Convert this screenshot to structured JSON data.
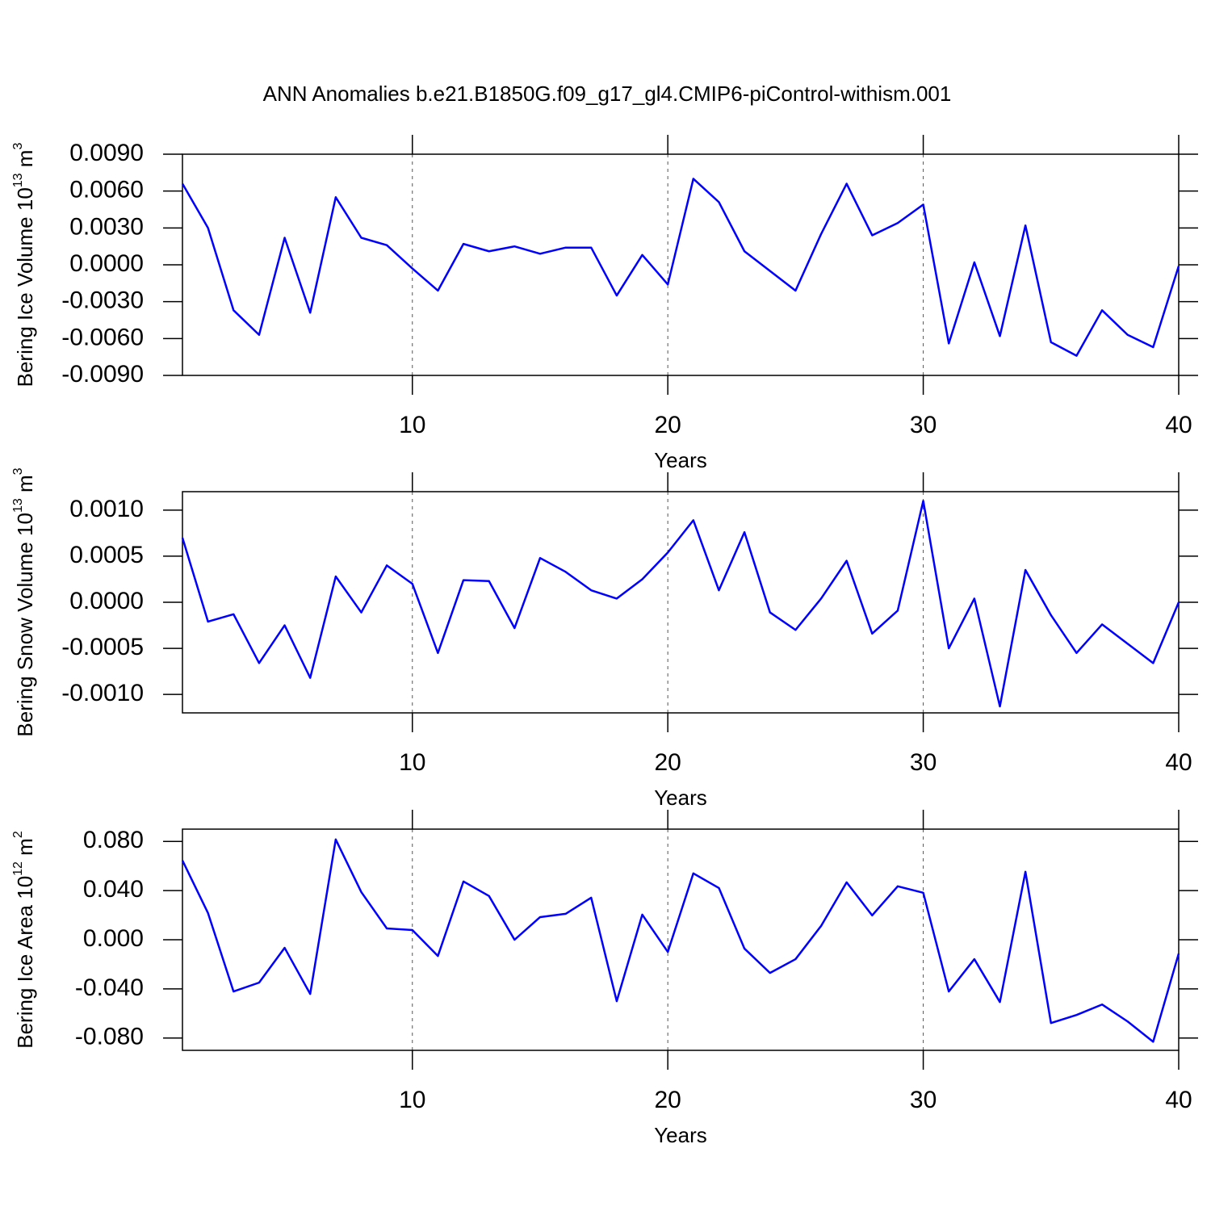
{
  "title": "ANN Anomalies b.e21.B1850G.f09_g17_gl4.CMIP6-piControl-withism.001",
  "chart_data": [
    {
      "type": "line",
      "color": "#0000ff",
      "xlabel": "Years",
      "ylabel": {
        "text": "Bering Ice Volume 10",
        "exp": "13",
        "unit": "m",
        "unit_exp": "3"
      },
      "xlim": [
        1,
        40
      ],
      "xticks": [
        10,
        20,
        30,
        40
      ],
      "x_grid": true,
      "ylim": [
        -0.009,
        0.009
      ],
      "yticks": [
        {
          "value": 0.009,
          "label": "0.0090"
        },
        {
          "value": 0.006,
          "label": "0.0060"
        },
        {
          "value": 0.003,
          "label": "0.0030"
        },
        {
          "value": 0,
          "label": "0.0000"
        },
        {
          "value": -0.003,
          "label": "-0.0030"
        },
        {
          "value": -0.006,
          "label": "-0.0060"
        },
        {
          "value": -0.009,
          "label": "-0.0090"
        }
      ],
      "x": [
        1,
        2,
        3,
        4,
        5,
        6,
        7,
        8,
        9,
        10,
        11,
        12,
        13,
        14,
        15,
        16,
        17,
        18,
        19,
        20,
        21,
        22,
        23,
        24,
        25,
        26,
        27,
        28,
        29,
        30,
        31,
        32,
        33,
        34,
        35,
        36,
        37,
        38,
        39,
        40
      ],
      "values": [
        0.0066,
        0.003,
        -0.0037,
        -0.0057,
        0.0022,
        -0.0039,
        0.0055,
        0.0022,
        0.0016,
        -0.0003,
        -0.0021,
        0.0017,
        0.0011,
        0.0015,
        0.0009,
        0.0014,
        0.0014,
        -0.0025,
        0.0008,
        -0.0016,
        0.007,
        0.0051,
        0.0011,
        -0.0005,
        -0.0021,
        0.0025,
        0.0066,
        0.0024,
        0.0034,
        0.0049,
        -0.0064,
        0.0002,
        -0.0058,
        0.0032,
        -0.0063,
        -0.0074,
        -0.0037,
        -0.0057,
        -0.0067,
        -0.0001
      ]
    },
    {
      "type": "line",
      "color": "#0000ff",
      "xlabel": "Years",
      "ylabel": {
        "text": "Bering Snow Volume 10",
        "exp": "13",
        "unit": "m",
        "unit_exp": "3"
      },
      "xlim": [
        1,
        40
      ],
      "xticks": [
        10,
        20,
        30,
        40
      ],
      "x_grid": true,
      "ylim": [
        -0.0012,
        0.0012
      ],
      "yticks": [
        {
          "value": 0.001,
          "label": "0.0010"
        },
        {
          "value": 0.0005,
          "label": "0.0005"
        },
        {
          "value": 0,
          "label": "0.0000"
        },
        {
          "value": -0.0005,
          "label": "-0.0005"
        },
        {
          "value": -0.001,
          "label": "-0.0010"
        }
      ],
      "x": [
        1,
        2,
        3,
        4,
        5,
        6,
        7,
        8,
        9,
        10,
        11,
        12,
        13,
        14,
        15,
        16,
        17,
        18,
        19,
        20,
        21,
        22,
        23,
        24,
        25,
        26,
        27,
        28,
        29,
        30,
        31,
        32,
        33,
        34,
        35,
        36,
        37,
        38,
        39,
        40
      ],
      "values": [
        0.0007,
        -0.00021,
        -0.00013,
        -0.00066,
        -0.00025,
        -0.00082,
        0.00028,
        -0.00011,
        0.0004,
        0.0002,
        -0.00055,
        0.00024,
        0.00023,
        -0.00028,
        0.00048,
        0.00033,
        0.00013,
        4e-05,
        0.00025,
        0.00054,
        0.00089,
        0.00013,
        0.00076,
        -0.00011,
        -0.0003,
        4e-05,
        0.00045,
        -0.00034,
        -9e-05,
        0.0011,
        -0.0005,
        4e-05,
        -0.00113,
        0.00035,
        -0.00014,
        -0.00055,
        -0.00024,
        -0.00045,
        -0.00066,
        0.0
      ]
    },
    {
      "type": "line",
      "color": "#0000ff",
      "xlabel": "Years",
      "ylabel": {
        "text": "Bering Ice Area 10",
        "exp": "12",
        "unit": "m",
        "unit_exp": "2"
      },
      "xlim": [
        1,
        40
      ],
      "xticks": [
        10,
        20,
        30,
        40
      ],
      "x_grid": true,
      "ylim": [
        -0.09,
        0.09
      ],
      "yticks": [
        {
          "value": 0.08,
          "label": "0.080"
        },
        {
          "value": 0.04,
          "label": "0.040"
        },
        {
          "value": 0,
          "label": "0.000"
        },
        {
          "value": -0.04,
          "label": "-0.040"
        },
        {
          "value": -0.08,
          "label": "-0.080"
        }
      ],
      "x": [
        1,
        2,
        3,
        4,
        5,
        6,
        7,
        8,
        9,
        10,
        11,
        12,
        13,
        14,
        15,
        16,
        17,
        18,
        19,
        20,
        21,
        22,
        23,
        24,
        25,
        26,
        27,
        28,
        29,
        30,
        31,
        32,
        33,
        34,
        35,
        36,
        37,
        38,
        39,
        40
      ],
      "values": [
        0.0645,
        0.0217,
        -0.0421,
        -0.0349,
        -0.0066,
        -0.0441,
        0.0816,
        0.0388,
        0.0092,
        0.0079,
        -0.0132,
        0.0474,
        0.0356,
        0.0,
        0.0184,
        0.0211,
        0.0342,
        -0.05,
        0.0204,
        -0.0099,
        0.054,
        0.0421,
        -0.0072,
        -0.027,
        -0.0158,
        0.0112,
        0.0467,
        0.0198,
        0.0435,
        0.0382,
        -0.0421,
        -0.0158,
        -0.0507,
        0.0553,
        -0.0678,
        -0.0612,
        -0.0527,
        -0.0665,
        -0.083,
        -0.0112
      ]
    }
  ]
}
